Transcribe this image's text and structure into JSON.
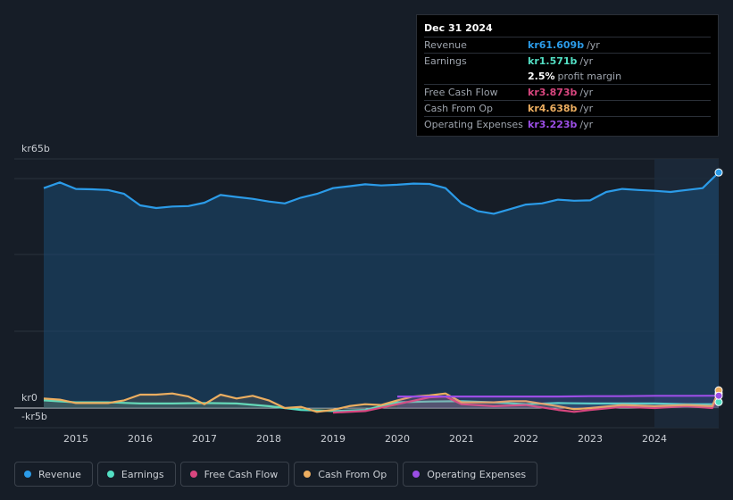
{
  "chart_data": {
    "type": "area",
    "ylim": [
      -5,
      65
    ],
    "y_ticks": [
      {
        "value": 65,
        "label": "kr65b"
      },
      {
        "value": 0,
        "label": "kr0"
      },
      {
        "value": -5,
        "label": "-kr5b"
      }
    ],
    "x_ticks": [
      "2015",
      "2016",
      "2017",
      "2018",
      "2019",
      "2020",
      "2021",
      "2022",
      "2023",
      "2024"
    ],
    "x_range": [
      2014.5,
      2025.0
    ],
    "highlight_start": 2024.0,
    "series": [
      {
        "name": "Revenue",
        "color": "#2b9be8",
        "fill": true,
        "x": [
          2014.5,
          2014.75,
          2015.0,
          2015.25,
          2015.5,
          2015.75,
          2016.0,
          2016.25,
          2016.5,
          2016.75,
          2017.0,
          2017.25,
          2017.5,
          2017.75,
          2018.0,
          2018.25,
          2018.5,
          2018.75,
          2019.0,
          2019.25,
          2019.5,
          2019.75,
          2020.0,
          2020.25,
          2020.5,
          2020.75,
          2021.0,
          2021.25,
          2021.5,
          2021.75,
          2022.0,
          2022.25,
          2022.5,
          2022.75,
          2023.0,
          2023.25,
          2023.5,
          2023.75,
          2024.0,
          2024.25,
          2024.5,
          2024.75,
          2025.0
        ],
        "y": [
          57.5,
          59.0,
          57.3,
          57.2,
          57.0,
          56.0,
          53.0,
          52.3,
          52.7,
          52.8,
          53.7,
          55.7,
          55.2,
          54.7,
          54.0,
          53.5,
          55.0,
          56.0,
          57.5,
          58.0,
          58.5,
          58.2,
          58.4,
          58.7,
          58.6,
          57.5,
          53.5,
          51.5,
          50.8,
          52.0,
          53.2,
          53.5,
          54.5,
          54.2,
          54.3,
          56.5,
          57.3,
          57.0,
          56.8,
          56.5,
          57.0,
          57.5,
          61.6
        ]
      },
      {
        "name": "Earnings",
        "color": "#53dfc4",
        "fill": false,
        "x": [
          2014.5,
          2015.0,
          2015.5,
          2016.0,
          2016.5,
          2017.0,
          2017.5,
          2018.0,
          2018.5,
          2019.0,
          2019.5,
          2020.0,
          2020.5,
          2021.0,
          2021.5,
          2022.0,
          2022.5,
          2023.0,
          2023.5,
          2024.0,
          2024.5,
          2024.9,
          2025.0
        ],
        "y": [
          2.0,
          1.5,
          1.5,
          1.2,
          1.2,
          1.3,
          1.2,
          0.5,
          -0.5,
          -0.8,
          -0.5,
          1.5,
          1.7,
          1.8,
          1.5,
          1.0,
          1.3,
          1.2,
          1.2,
          1.2,
          1.0,
          1.0,
          1.571
        ]
      },
      {
        "name": "Free Cash Flow",
        "color": "#d9467f",
        "fill": false,
        "x": [
          2019.0,
          2019.5,
          2020.0,
          2020.5,
          2020.75,
          2021.0,
          2021.5,
          2022.0,
          2022.5,
          2022.75,
          2023.0,
          2023.5,
          2024.0,
          2024.5,
          2024.9,
          2025.0
        ],
        "y": [
          -1.2,
          -0.8,
          1.0,
          2.8,
          3.0,
          1.0,
          0.5,
          0.8,
          -0.5,
          -1.0,
          -0.5,
          0.3,
          0.0,
          0.5,
          0.0,
          3.873
        ]
      },
      {
        "name": "Cash From Op",
        "color": "#ecae60",
        "fill": false,
        "x": [
          2014.5,
          2014.75,
          2015.0,
          2015.5,
          2015.75,
          2016.0,
          2016.25,
          2016.5,
          2016.75,
          2017.0,
          2017.25,
          2017.5,
          2017.75,
          2018.0,
          2018.25,
          2018.5,
          2018.75,
          2019.0,
          2019.25,
          2019.5,
          2019.75,
          2020.0,
          2020.25,
          2020.5,
          2020.75,
          2021.0,
          2021.5,
          2021.75,
          2022.0,
          2022.5,
          2022.75,
          2023.0,
          2023.5,
          2024.0,
          2024.5,
          2024.9,
          2025.0
        ],
        "y": [
          2.5,
          2.2,
          1.3,
          1.3,
          2.0,
          3.5,
          3.5,
          3.8,
          3.0,
          1.0,
          3.5,
          2.5,
          3.2,
          2.0,
          0.0,
          0.3,
          -1.0,
          -0.5,
          0.5,
          1.0,
          0.8,
          2.0,
          3.0,
          3.3,
          3.8,
          1.5,
          1.5,
          1.8,
          1.8,
          0.5,
          -0.3,
          0.0,
          0.8,
          0.5,
          0.8,
          0.5,
          4.638
        ]
      },
      {
        "name": "Operating Expenses",
        "color": "#9b4ee5",
        "fill": false,
        "x": [
          2020.0,
          2020.5,
          2021.0,
          2021.5,
          2022.0,
          2022.5,
          2023.0,
          2023.5,
          2024.0,
          2024.5,
          2025.0
        ],
        "y": [
          3.0,
          3.0,
          3.0,
          3.0,
          3.0,
          3.0,
          3.1,
          3.1,
          3.2,
          3.2,
          3.223
        ]
      }
    ]
  },
  "tooltip": {
    "date": "Dec 31 2024",
    "rows": [
      {
        "label": "Revenue",
        "value": "kr61.609b",
        "unit": "/yr",
        "color": "#2b9be8"
      },
      {
        "label": "Earnings",
        "value": "kr1.571b",
        "unit": "/yr",
        "color": "#53dfc4"
      },
      {
        "label": "",
        "value": "2.5%",
        "unit": "profit margin",
        "color": "#ffffff"
      },
      {
        "label": "Free Cash Flow",
        "value": "kr3.873b",
        "unit": "/yr",
        "color": "#d9467f"
      },
      {
        "label": "Cash From Op",
        "value": "kr4.638b",
        "unit": "/yr",
        "color": "#ecae60"
      },
      {
        "label": "Operating Expenses",
        "value": "kr3.223b",
        "unit": "/yr",
        "color": "#9b4ee5"
      }
    ]
  },
  "legend": [
    {
      "label": "Revenue",
      "color": "#2b9be8"
    },
    {
      "label": "Earnings",
      "color": "#53dfc4"
    },
    {
      "label": "Free Cash Flow",
      "color": "#d9467f"
    },
    {
      "label": "Cash From Op",
      "color": "#ecae60"
    },
    {
      "label": "Operating Expenses",
      "color": "#9b4ee5"
    }
  ]
}
